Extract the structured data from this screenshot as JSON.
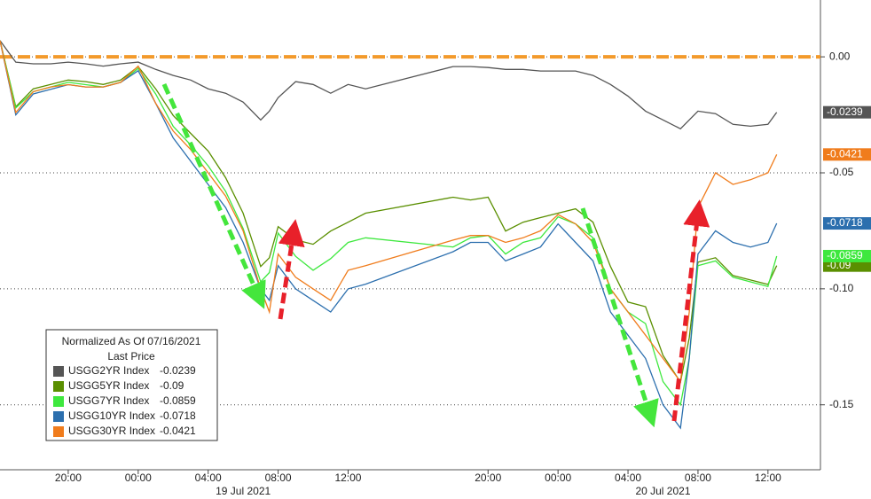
{
  "chart_data": {
    "type": "line",
    "legend_title": "Normalized As Of 07/16/2021",
    "legend_subtitle": "Last Price",
    "x": [
      -7.9,
      -7,
      -6,
      -5,
      -4,
      -3,
      -2,
      -1,
      0,
      1,
      2,
      3,
      4,
      5,
      6,
      7,
      7.5,
      8,
      9,
      10,
      11,
      12,
      13,
      18,
      19,
      20,
      21,
      22,
      23,
      24,
      25,
      26,
      27,
      28,
      29,
      30,
      31,
      31.5,
      32,
      33,
      34,
      35,
      36,
      36.5
    ],
    "series": [
      {
        "name": "USGG2YR Index",
        "color": "#555555",
        "last": -0.0239,
        "values": [
          0.007,
          -0.0023,
          -0.003,
          -0.003,
          -0.0023,
          -0.003,
          -0.004,
          -0.003,
          -0.0023,
          -0.0054,
          -0.008,
          -0.01,
          -0.0138,
          -0.0157,
          -0.0195,
          -0.0272,
          -0.0234,
          -0.0176,
          -0.0107,
          -0.0119,
          -0.0157,
          -0.0119,
          -0.0138,
          -0.0042,
          -0.0042,
          -0.0046,
          -0.0054,
          -0.0054,
          -0.0061,
          -0.0061,
          -0.0061,
          -0.008,
          -0.0119,
          -0.0169,
          -0.0234,
          -0.0272,
          -0.031,
          -0.0272,
          -0.0234,
          -0.0245,
          -0.0291,
          -0.0299,
          -0.0291,
          -0.0239
        ]
      },
      {
        "name": "USGG5YR Index",
        "color": "#5a8f00",
        "last": -0.09,
        "values": [
          0.007,
          -0.0215,
          -0.0138,
          -0.0119,
          -0.01,
          -0.0107,
          -0.0119,
          -0.01,
          -0.0042,
          -0.0138,
          -0.0253,
          -0.033,
          -0.0406,
          -0.0521,
          -0.0674,
          -0.0904,
          -0.0866,
          -0.0732,
          -0.0789,
          -0.0808,
          -0.0751,
          -0.0713,
          -0.0674,
          -0.0605,
          -0.0617,
          -0.0605,
          -0.0751,
          -0.0713,
          -0.0693,
          -0.0674,
          -0.0655,
          -0.0713,
          -0.0904,
          -0.1057,
          -0.1077,
          -0.1287,
          -0.1402,
          -0.1211,
          -0.0885,
          -0.0866,
          -0.0943,
          -0.0962,
          -0.0981,
          -0.09
        ]
      },
      {
        "name": "USGG7YR Index",
        "color": "#3ee83e",
        "last": -0.0859,
        "values": [
          0.007,
          -0.022,
          -0.015,
          -0.013,
          -0.011,
          -0.012,
          -0.013,
          -0.011,
          -0.005,
          -0.016,
          -0.03,
          -0.038,
          -0.047,
          -0.058,
          -0.074,
          -0.097,
          -0.093,
          -0.076,
          -0.086,
          -0.092,
          -0.087,
          -0.08,
          -0.078,
          -0.082,
          -0.078,
          -0.077,
          -0.085,
          -0.08,
          -0.078,
          -0.069,
          -0.072,
          -0.078,
          -0.1,
          -0.11,
          -0.115,
          -0.14,
          -0.15,
          -0.13,
          -0.09,
          -0.088,
          -0.095,
          -0.097,
          -0.099,
          -0.0859
        ]
      },
      {
        "name": "USGG10YR Index",
        "color": "#2c6fae",
        "last": -0.0718,
        "values": [
          0.007,
          -0.025,
          -0.016,
          -0.014,
          -0.012,
          -0.013,
          -0.013,
          -0.011,
          -0.006,
          -0.02,
          -0.035,
          -0.045,
          -0.055,
          -0.065,
          -0.08,
          -0.1,
          -0.105,
          -0.09,
          -0.1,
          -0.105,
          -0.11,
          -0.1,
          -0.098,
          -0.084,
          -0.08,
          -0.08,
          -0.088,
          -0.085,
          -0.082,
          -0.072,
          -0.08,
          -0.088,
          -0.11,
          -0.12,
          -0.13,
          -0.15,
          -0.16,
          -0.13,
          -0.085,
          -0.075,
          -0.08,
          -0.082,
          -0.08,
          -0.0718
        ]
      },
      {
        "name": "USGG30YR Index",
        "color": "#f07c1c",
        "last": -0.0421,
        "values": [
          0.007,
          -0.024,
          -0.015,
          -0.013,
          -0.012,
          -0.013,
          -0.013,
          -0.011,
          -0.004,
          -0.02,
          -0.032,
          -0.04,
          -0.05,
          -0.06,
          -0.075,
          -0.1,
          -0.11,
          -0.085,
          -0.095,
          -0.1,
          -0.105,
          -0.092,
          -0.09,
          -0.079,
          -0.077,
          -0.077,
          -0.08,
          -0.078,
          -0.075,
          -0.068,
          -0.072,
          -0.08,
          -0.1,
          -0.11,
          -0.12,
          -0.13,
          -0.14,
          -0.11,
          -0.065,
          -0.05,
          -0.055,
          -0.053,
          -0.05,
          -0.0421
        ]
      }
    ],
    "reference_line": {
      "value": 0,
      "color": "#f39a2b"
    },
    "xlim": [
      -7.9,
      39
    ],
    "xticks": [
      {
        "value": -4,
        "label": "20:00"
      },
      {
        "value": 0,
        "label": "00:00"
      },
      {
        "value": 4,
        "label": "04:00"
      },
      {
        "value": 8,
        "label": "08:00"
      },
      {
        "value": 12,
        "label": "12:00"
      },
      {
        "value": 20,
        "label": "20:00"
      },
      {
        "value": 24,
        "label": "00:00"
      },
      {
        "value": 28,
        "label": "04:00"
      },
      {
        "value": 32,
        "label": "08:00"
      },
      {
        "value": 36,
        "label": "12:00"
      }
    ],
    "xdate_ticks": [
      {
        "value": 6,
        "label": "19 Jul 2021"
      },
      {
        "value": 30,
        "label": "20 Jul 2021"
      }
    ],
    "ylim": [
      -0.178,
      0.0245
    ],
    "yticks": [
      {
        "value": 0,
        "label": "0.00"
      },
      -0.05,
      {
        "value": -0.1,
        "label": "-0.10"
      },
      -0.15
    ],
    "grid": true
  }
}
